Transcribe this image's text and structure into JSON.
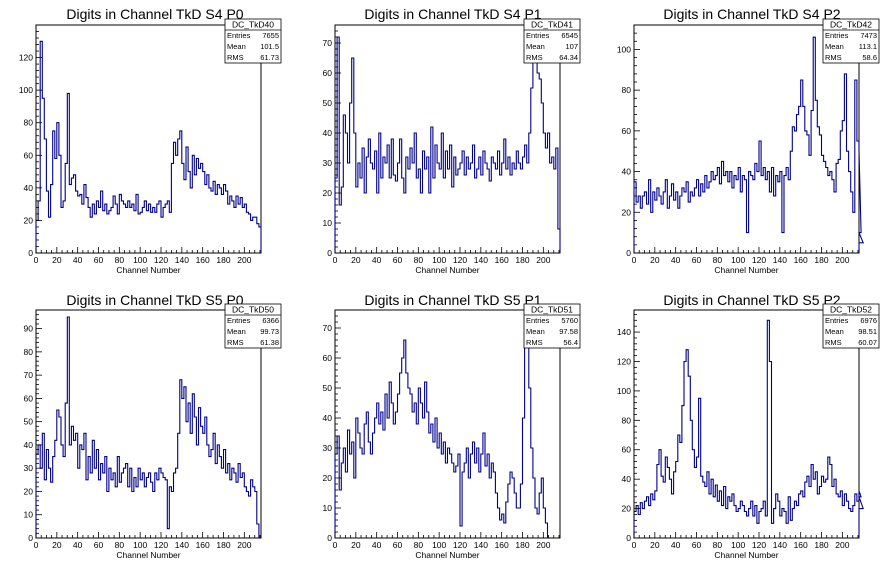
{
  "chart_data": [
    {
      "type": "histogram",
      "title": "Digits in Channel TkD S4 P0",
      "xlabel": "Channel Number",
      "xlim": [
        0,
        216
      ],
      "ylim": [
        0,
        140
      ],
      "x_ticks": [
        0,
        20,
        40,
        60,
        80,
        100,
        120,
        140,
        160,
        180,
        200
      ],
      "y_ticks": [
        0,
        20,
        40,
        60,
        80,
        100,
        120
      ],
      "stats": {
        "name": "DC_TkD40",
        "rows": [
          [
            "Entries",
            "7655"
          ],
          [
            "Mean",
            "101.5"
          ],
          [
            "RMS",
            "61.73"
          ]
        ]
      },
      "bin_width": 2,
      "values": [
        20,
        32,
        130,
        95,
        70,
        38,
        22,
        42,
        75,
        58,
        80,
        60,
        28,
        32,
        55,
        98,
        42,
        46,
        48,
        38,
        35,
        36,
        30,
        42,
        34,
        28,
        22,
        30,
        24,
        32,
        28,
        38,
        26,
        30,
        24,
        26,
        28,
        35,
        30,
        24,
        36,
        32,
        30,
        28,
        32,
        28,
        30,
        26,
        36,
        24,
        25,
        28,
        32,
        26,
        30,
        25,
        28,
        25,
        30,
        32,
        22,
        28,
        30,
        32,
        25,
        55,
        68,
        60,
        70,
        75,
        55,
        45,
        65,
        50,
        40,
        60,
        48,
        58,
        52,
        55,
        50,
        42,
        48,
        40,
        38,
        44,
        36,
        42,
        40,
        36,
        42,
        38,
        30,
        35,
        32,
        28,
        35,
        30,
        34,
        28,
        30,
        25,
        24,
        20,
        22,
        22,
        18,
        16,
        15
      ]
    },
    {
      "type": "histogram",
      "title": "Digits in Channel TkD S4 P1",
      "xlabel": "Channel Number",
      "xlim": [
        0,
        216
      ],
      "ylim": [
        0,
        76
      ],
      "x_ticks": [
        0,
        20,
        40,
        60,
        80,
        100,
        120,
        140,
        160,
        180,
        200
      ],
      "y_ticks": [
        0,
        10,
        20,
        30,
        40,
        50,
        60,
        70
      ],
      "stats": {
        "name": "DC_TkD41",
        "rows": [
          [
            "Entries",
            "6545"
          ],
          [
            "Mean",
            "107"
          ],
          [
            "RMS",
            "64.34"
          ]
        ]
      },
      "bin_width": 2,
      "values": [
        25,
        72,
        16,
        22,
        46,
        40,
        30,
        50,
        65,
        40,
        22,
        30,
        25,
        35,
        20,
        32,
        38,
        30,
        28,
        34,
        20,
        40,
        25,
        32,
        30,
        36,
        25,
        38,
        26,
        24,
        30,
        38,
        25,
        20,
        32,
        28,
        35,
        30,
        40,
        25,
        28,
        20,
        34,
        28,
        32,
        20,
        42,
        25,
        36,
        30,
        28,
        40,
        25,
        34,
        28,
        36,
        22,
        32,
        26,
        28,
        30,
        34,
        26,
        32,
        28,
        30,
        36,
        25,
        28,
        32,
        26,
        34,
        30,
        28,
        24,
        32,
        30,
        28,
        34,
        26,
        30,
        38,
        28,
        32,
        26,
        30,
        28,
        34,
        30,
        28,
        32,
        36,
        30,
        40,
        55,
        65,
        70,
        60,
        58,
        50,
        40,
        35,
        40,
        30,
        32,
        28,
        35,
        8
      ]
    },
    {
      "type": "histogram",
      "title": "Digits in Channel TkD S4 P2",
      "xlabel": "Channel Number",
      "xlim": [
        0,
        216
      ],
      "ylim": [
        0,
        112
      ],
      "x_ticks": [
        0,
        20,
        40,
        60,
        80,
        100,
        120,
        140,
        160,
        180,
        200
      ],
      "y_ticks": [
        0,
        20,
        40,
        60,
        80,
        100
      ],
      "stats": {
        "name": "DC_TkD42",
        "rows": [
          [
            "Entries",
            "7473"
          ],
          [
            "Mean",
            "113.1"
          ],
          [
            "RMS",
            "58.6"
          ]
        ]
      },
      "bin_width": 2,
      "values": [
        35,
        25,
        28,
        22,
        28,
        30,
        24,
        36,
        20,
        30,
        26,
        32,
        28,
        24,
        30,
        36,
        22,
        28,
        34,
        26,
        30,
        22,
        28,
        32,
        30,
        35,
        25,
        30,
        28,
        32,
        36,
        28,
        34,
        30,
        38,
        32,
        35,
        40,
        36,
        38,
        42,
        34,
        45,
        38,
        40,
        35,
        40,
        32,
        38,
        36,
        42,
        30,
        38,
        36,
        10,
        40,
        38,
        36,
        44,
        40,
        55,
        38,
        42,
        36,
        40,
        30,
        42,
        28,
        38,
        35,
        40,
        10,
        38,
        42,
        36,
        50,
        62,
        60,
        68,
        72,
        85,
        72,
        60,
        58,
        48,
        70,
        106,
        75,
        62,
        58,
        48,
        45,
        42,
        38,
        40,
        36,
        30,
        44,
        46,
        60,
        65,
        88,
        50,
        40,
        30,
        20,
        85,
        55,
        50,
        10,
        5
      ]
    },
    {
      "type": "histogram",
      "title": "Digits in Channel TkD S5 P0",
      "xlabel": "Channel Number",
      "xlim": [
        0,
        216
      ],
      "ylim": [
        0,
        98
      ],
      "x_ticks": [
        0,
        20,
        40,
        60,
        80,
        100,
        120,
        140,
        160,
        180,
        200
      ],
      "y_ticks": [
        0,
        10,
        20,
        30,
        40,
        50,
        60,
        70,
        80,
        90
      ],
      "stats": {
        "name": "DC_TkD50",
        "rows": [
          [
            "Entries",
            "6366"
          ],
          [
            "Mean",
            "99.73"
          ],
          [
            "RMS",
            "61.38"
          ]
        ]
      },
      "bin_width": 2,
      "values": [
        36,
        40,
        30,
        45,
        25,
        38,
        30,
        24,
        35,
        42,
        55,
        52,
        40,
        35,
        58,
        95,
        40,
        48,
        42,
        45,
        30,
        40,
        38,
        45,
        25,
        35,
        28,
        42,
        30,
        38,
        25,
        32,
        28,
        35,
        20,
        30,
        25,
        28,
        22,
        35,
        24,
        28,
        30,
        32,
        22,
        30,
        20,
        26,
        22,
        30,
        25,
        28,
        22,
        26,
        28,
        24,
        20,
        28,
        25,
        30,
        28,
        26,
        25,
        4,
        22,
        20,
        28,
        30,
        45,
        68,
        60,
        65,
        50,
        58,
        45,
        62,
        52,
        40,
        56,
        48,
        45,
        52,
        40,
        35,
        38,
        45,
        32,
        40,
        35,
        30,
        38,
        28,
        32,
        25,
        30,
        28,
        24,
        32,
        26,
        28,
        22,
        20,
        18,
        25,
        22,
        20,
        6
      ]
    },
    {
      "type": "histogram",
      "title": "Digits in Channel TkD S5 P1",
      "xlabel": "Channel Number",
      "xlim": [
        0,
        216
      ],
      "ylim": [
        0,
        76
      ],
      "x_ticks": [
        0,
        20,
        40,
        60,
        80,
        100,
        120,
        140,
        160,
        180,
        200
      ],
      "y_ticks": [
        0,
        10,
        20,
        30,
        40,
        50,
        60,
        70
      ],
      "stats": {
        "name": "DC_TkD51",
        "rows": [
          [
            "Entries",
            "5760"
          ],
          [
            "Mean",
            "97.58"
          ],
          [
            "RMS",
            "56.4"
          ]
        ]
      },
      "bin_width": 2,
      "values": [
        28,
        34,
        16,
        25,
        30,
        22,
        36,
        28,
        32,
        20,
        40,
        35,
        30,
        28,
        38,
        42,
        32,
        28,
        35,
        40,
        45,
        38,
        42,
        36,
        48,
        40,
        52,
        45,
        38,
        42,
        48,
        55,
        60,
        66,
        55,
        50,
        48,
        42,
        45,
        38,
        50,
        45,
        40,
        52,
        42,
        35,
        38,
        32,
        40,
        30,
        35,
        28,
        32,
        25,
        30,
        28,
        25,
        22,
        24,
        28,
        4,
        22,
        25,
        30,
        20,
        28,
        32,
        25,
        30,
        22,
        28,
        35,
        24,
        28,
        20,
        25,
        22,
        15,
        10,
        6,
        8,
        5,
        12,
        18,
        22,
        20,
        15,
        10,
        10,
        18,
        40,
        65,
        72,
        50,
        30,
        20,
        10,
        8,
        15,
        20,
        10,
        5
      ]
    },
    {
      "type": "histogram",
      "title": "Digits in Channel TkD S5 P2",
      "xlabel": "Channel Number",
      "xlim": [
        0,
        216
      ],
      "ylim": [
        0,
        155
      ],
      "x_ticks": [
        0,
        20,
        40,
        60,
        80,
        100,
        120,
        140,
        160,
        180,
        200
      ],
      "y_ticks": [
        0,
        20,
        40,
        60,
        80,
        100,
        120,
        140
      ],
      "stats": {
        "name": "DC_TkD52",
        "rows": [
          [
            "Entries",
            "6976"
          ],
          [
            "Mean",
            "98.51"
          ],
          [
            "RMS",
            "60.07"
          ]
        ]
      },
      "bin_width": 2,
      "values": [
        18,
        22,
        16,
        24,
        20,
        25,
        28,
        22,
        30,
        26,
        32,
        50,
        60,
        42,
        38,
        55,
        48,
        40,
        30,
        45,
        52,
        70,
        65,
        90,
        120,
        128,
        110,
        80,
        60,
        48,
        55,
        95,
        42,
        38,
        35,
        45,
        30,
        40,
        28,
        36,
        25,
        32,
        22,
        35,
        20,
        28,
        25,
        30,
        22,
        18,
        20,
        25,
        22,
        18,
        15,
        20,
        25,
        15,
        22,
        10,
        18,
        20,
        25,
        15,
        148,
        120,
        10,
        20,
        30,
        25,
        15,
        20,
        18,
        10,
        28,
        12,
        20,
        25,
        22,
        30,
        32,
        28,
        38,
        42,
        35,
        50,
        40,
        45,
        30,
        35,
        42,
        38,
        40,
        55,
        50,
        35,
        40,
        30,
        28,
        32,
        22,
        30,
        25,
        20,
        18,
        22,
        30,
        25,
        32,
        28,
        20
      ]
    }
  ]
}
